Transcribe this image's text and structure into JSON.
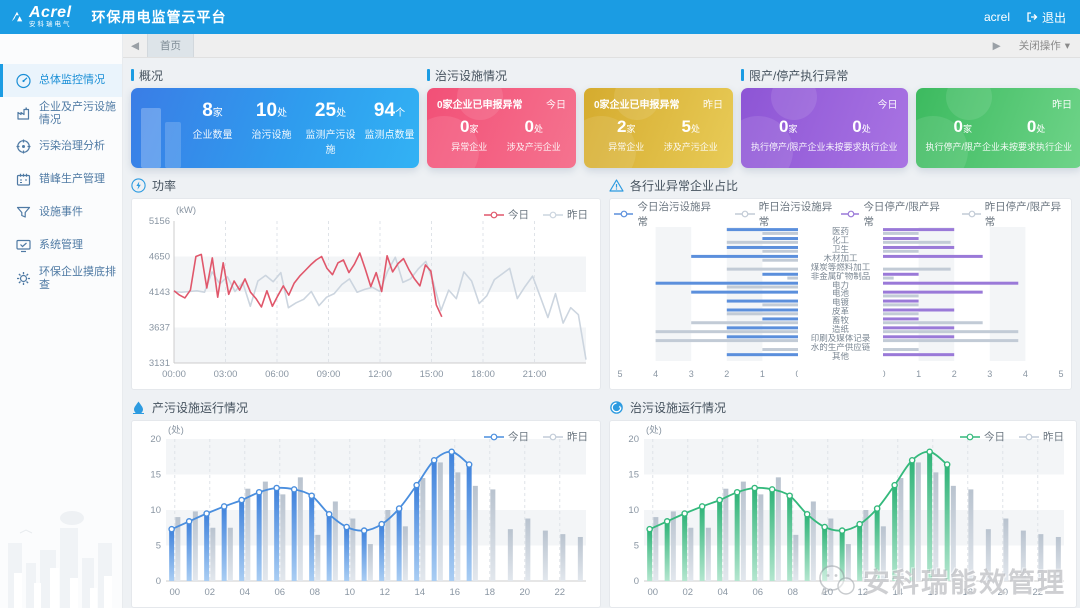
{
  "header": {
    "logo": "Acrel",
    "logo_sub": "安科瑞电气",
    "title": "环保用电监管云平台",
    "username": "acrel",
    "logout_label": "退出"
  },
  "tabbar": {
    "left_arrow": "◀",
    "home_tab": "首页",
    "right_arrow": "▶",
    "close_menu": "关闭操作",
    "caret": "▾"
  },
  "sidebar": {
    "items": [
      {
        "label": "总体监控情况",
        "icon": "gauge-icon",
        "active": true
      },
      {
        "label": "企业及产污设施情况",
        "icon": "factory-icon",
        "active": false
      },
      {
        "label": "污染治理分析",
        "icon": "target-icon",
        "active": false
      },
      {
        "label": "错峰生产管理",
        "icon": "calendar-icon",
        "active": false
      },
      {
        "label": "设施事件",
        "icon": "funnel-icon",
        "active": false
      },
      {
        "label": "系统管理",
        "icon": "monitor-icon",
        "active": false
      },
      {
        "label": "环保企业摸底排查",
        "icon": "gear-icon",
        "active": false
      }
    ]
  },
  "overview": {
    "title": "概况",
    "stats": [
      {
        "value": "8",
        "unit": "家",
        "label": "企业数量"
      },
      {
        "value": "10",
        "unit": "处",
        "label": "治污设施"
      },
      {
        "value": "25",
        "unit": "处",
        "label": "监测产污设施"
      },
      {
        "value": "94",
        "unit": "个",
        "label": "监测点数量"
      }
    ]
  },
  "treatment": {
    "title": "治污设施情况",
    "cards": [
      {
        "theme": "pink",
        "headline": "0家企业已申报异常",
        "period": "今日",
        "stats": [
          {
            "value": "0",
            "unit": "家",
            "label": "异常企业"
          },
          {
            "value": "0",
            "unit": "处",
            "label": "涉及产污企业"
          }
        ]
      },
      {
        "theme": "gold",
        "headline": "0家企业已申报异常",
        "period": "昨日",
        "stats": [
          {
            "value": "2",
            "unit": "家",
            "label": "异常企业"
          },
          {
            "value": "5",
            "unit": "处",
            "label": "涉及产污企业"
          }
        ]
      }
    ]
  },
  "restriction": {
    "title": "限产/停产执行异常",
    "cards": [
      {
        "theme": "purple",
        "period": "今日",
        "stats": [
          {
            "value": "0",
            "unit": "家",
            "label": "执行停产/限产企业"
          },
          {
            "value": "0",
            "unit": "处",
            "label": "未按要求执行企业"
          }
        ]
      },
      {
        "theme": "green",
        "period": "昨日",
        "stats": [
          {
            "value": "0",
            "unit": "家",
            "label": "执行停产/限产企业"
          },
          {
            "value": "0",
            "unit": "处",
            "label": "未按要求执行企业"
          }
        ]
      }
    ]
  },
  "watermark": {
    "text": "安科瑞能效管理"
  },
  "chart_data": [
    {
      "id": "power",
      "type": "line",
      "title": "功率",
      "ylabel": "(kW)",
      "yticks": [
        5156,
        4650,
        4143,
        3637,
        3131
      ],
      "ylim": [
        3131,
        5156
      ],
      "xticks": [
        "00:00",
        "03:00",
        "06:00",
        "09:00",
        "12:00",
        "15:00",
        "18:00",
        "21:00"
      ],
      "grid": "dashed-vertical, alternating horizontal bands",
      "legend_position": "top-right",
      "legend": [
        {
          "name": "今日",
          "color": "#e0576b"
        },
        {
          "name": "昨日",
          "color": "#ccd5df"
        }
      ],
      "series": [
        {
          "name": "今日",
          "color": "#e0576b",
          "span": 0.65,
          "values": [
            4160,
            4100,
            4060,
            4170,
            4650,
            4680,
            4200,
            4630,
            4070,
            4560,
            4110,
            4300,
            4170,
            4330,
            4140,
            4050,
            3930,
            4160,
            3940,
            4090,
            4230,
            4100,
            4270,
            4370,
            4450,
            4530,
            4600,
            4650,
            4480,
            4390,
            4560,
            4600,
            4420,
            4540,
            4700,
            4470,
            4220,
            4420,
            4150,
            4660,
            4430,
            4550,
            4620,
            4460,
            4330,
            4230,
            4530,
            4440,
            3960,
            3790
          ]
        },
        {
          "name": "昨日",
          "color": "#ccd5df",
          "span": 1.0,
          "values": [
            4150,
            4140,
            4150,
            4160,
            4140,
            4430,
            4260,
            4360,
            4150,
            4280,
            3940,
            4300,
            4380,
            4290,
            4420,
            3920,
            3990,
            4040,
            4150,
            3950,
            4070,
            4120,
            4250,
            4330,
            4140,
            4180,
            4210,
            4150,
            4440,
            4640,
            4280,
            4330,
            4470,
            4580,
            4280,
            3880,
            4170,
            4050,
            4430,
            4300,
            3980,
            4090,
            4320,
            4400,
            4480,
            4050,
            4220,
            4370,
            4080,
            3780,
            4120,
            3700,
            3920,
            3820,
            3180
          ]
        }
      ]
    },
    {
      "id": "industry",
      "type": "dual-hbar",
      "title": "各行业异常企业占比",
      "categories": [
        "医药",
        "化工",
        "卫生",
        "木材加工",
        "煤炭等燃料加工",
        "非金属矿物制品",
        "电力",
        "电池",
        "电镀",
        "皮革",
        "畜牧",
        "造纸",
        "印刷及媒体记录",
        "水的生产供应链",
        "其他"
      ],
      "xlim": [
        0,
        5
      ],
      "left": {
        "xticks": [
          5,
          4,
          3,
          2,
          1,
          0
        ],
        "legend": [
          {
            "name": "今日治污设施异常",
            "color": "#5b8fdc"
          },
          {
            "name": "昨日治污设施异常",
            "color": "#c2cbd6"
          }
        ],
        "series": [
          {
            "name": "今日治污设施异常",
            "color": "#5b8fdc",
            "values": [
              2,
              1,
              2,
              3,
              0,
              1,
              4,
              3,
              2,
              2,
              1,
              2,
              2,
              0,
              2
            ]
          },
          {
            "name": "昨日治污设施异常",
            "color": "#c2cbd6",
            "values": [
              1,
              2,
              1,
              1,
              2,
              0.3,
              2,
              0,
              1,
              2,
              3,
              4,
              4,
              1,
              0
            ]
          }
        ]
      },
      "right": {
        "xticks": [
          0,
          1,
          2,
          3,
          4,
          5
        ],
        "legend": [
          {
            "name": "今日停产/限产异常",
            "color": "#9a79d8"
          },
          {
            "name": "昨日停产/限产异常",
            "color": "#c2cbd6"
          }
        ],
        "series": [
          {
            "name": "今日停产/限产异常",
            "color": "#9a79d8",
            "values": [
              2,
              1,
              2,
              2.8,
              0,
              1,
              3.8,
              2.8,
              1,
              2,
              1,
              2,
              2,
              0,
              2
            ]
          },
          {
            "name": "昨日停产/限产异常",
            "color": "#c2cbd6",
            "values": [
              1,
              1.9,
              1,
              0,
              1.9,
              0.3,
              0,
              1,
              1,
              1,
              2.8,
              3.8,
              3.8,
              1,
              0
            ]
          }
        ]
      }
    },
    {
      "id": "prod",
      "type": "bar-line",
      "title": "产污设施运行情况",
      "ylabel": "(处)",
      "yticks": [
        0,
        5,
        10,
        15,
        20
      ],
      "ylim": [
        0,
        20
      ],
      "xticks": [
        "00",
        "02",
        "04",
        "06",
        "08",
        "10",
        "12",
        "14",
        "16",
        "18",
        "20",
        "22"
      ],
      "accent": "#4a8ede",
      "legend_position": "top-right",
      "legend": [
        {
          "name": "今日",
          "color": "#4a8ede"
        },
        {
          "name": "昨日",
          "color": "#c2ccd8"
        }
      ],
      "series": [
        {
          "name": "今日",
          "values": [
            7.3,
            8.4,
            9.5,
            10.5,
            11.4,
            12.5,
            13.1,
            12.9,
            12,
            9.4,
            7.6,
            7.1,
            8,
            10.2,
            13.5,
            17,
            18.2,
            16.4
          ]
        },
        {
          "name": "昨日",
          "values": [
            9,
            9.8,
            7.5,
            7.5,
            13,
            14,
            12.2,
            14.6,
            6.5,
            11.2,
            8.8,
            5.2,
            10,
            7.7,
            14.5,
            16.7,
            15.3,
            13.4,
            12.9,
            7.3,
            8.8,
            7.1,
            6.6,
            6.2
          ]
        }
      ],
      "line_follows": "今日"
    },
    {
      "id": "treat",
      "type": "bar-line",
      "title": "治污设施运行情况",
      "ylabel": "(处)",
      "yticks": [
        0,
        5,
        10,
        15,
        20
      ],
      "ylim": [
        0,
        20
      ],
      "xticks": [
        "00",
        "02",
        "04",
        "06",
        "08",
        "10",
        "12",
        "14",
        "16",
        "18",
        "20",
        "22"
      ],
      "accent": "#34b97c",
      "legend_position": "top-right",
      "legend": [
        {
          "name": "今日",
          "color": "#34b97c"
        },
        {
          "name": "昨日",
          "color": "#c2ccd8"
        }
      ],
      "series": [
        {
          "name": "今日",
          "values": [
            7.3,
            8.4,
            9.5,
            10.5,
            11.4,
            12.5,
            13.1,
            12.9,
            12,
            9.4,
            7.6,
            7.1,
            8,
            10.2,
            13.5,
            17,
            18.2,
            16.4
          ]
        },
        {
          "name": "昨日",
          "values": [
            9,
            9.8,
            7.5,
            7.5,
            13,
            14,
            12.2,
            14.6,
            6.5,
            11.2,
            8.8,
            5.2,
            10,
            7.7,
            14.5,
            16.7,
            15.3,
            13.4,
            12.9,
            7.3,
            8.8,
            7.1,
            6.6,
            6.2
          ]
        }
      ],
      "line_follows": "今日"
    }
  ]
}
